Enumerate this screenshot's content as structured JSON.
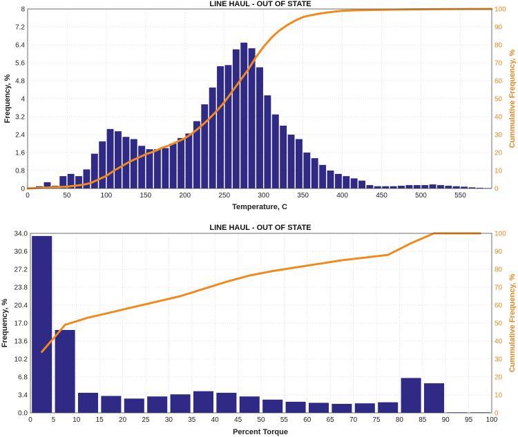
{
  "colors": {
    "bars": "#2E2A86",
    "cumulative": "#F28A1B",
    "right_axis": "#E8871E"
  },
  "chart_data": [
    {
      "type": "bar",
      "title": "LINE HAUL - OUT OF STATE",
      "xlabel": "Temperature, C",
      "ylabel": "Frequency, %",
      "y2label": "Cummulative Frequency, %",
      "xlim": [
        0,
        590
      ],
      "ylim": [
        0,
        8
      ],
      "y2lim": [
        0,
        100
      ],
      "bin_width": 10,
      "xticks": [
        0,
        50,
        100,
        150,
        200,
        250,
        300,
        350,
        400,
        450,
        500,
        550
      ],
      "yticks": [
        "0",
        "0.8",
        "1.6",
        "2.4",
        "3.2",
        "4",
        "4.8",
        "5.6",
        "6.4",
        "7.2",
        "8"
      ],
      "y2ticks": [
        0,
        10,
        20,
        30,
        40,
        50,
        60,
        70,
        80,
        90,
        100
      ],
      "bin_centers": [
        5,
        15,
        25,
        35,
        45,
        55,
        65,
        75,
        85,
        95,
        105,
        115,
        125,
        135,
        145,
        155,
        165,
        175,
        185,
        195,
        205,
        215,
        225,
        235,
        245,
        255,
        265,
        275,
        285,
        295,
        305,
        315,
        325,
        335,
        345,
        355,
        365,
        375,
        385,
        395,
        405,
        415,
        425,
        435,
        445,
        455,
        465,
        475,
        485,
        495,
        505,
        515,
        525,
        535,
        545,
        555,
        565,
        575,
        585
      ],
      "values": [
        0.05,
        0.1,
        0.28,
        0.12,
        0.55,
        0.65,
        0.55,
        0.85,
        1.55,
        2.1,
        2.65,
        2.55,
        2.3,
        2.2,
        1.9,
        1.75,
        1.75,
        1.8,
        2.0,
        2.25,
        2.45,
        3.0,
        3.75,
        4.5,
        5.45,
        5.5,
        6.2,
        6.5,
        6.25,
        5.4,
        4.15,
        3.3,
        2.8,
        2.4,
        2.2,
        1.6,
        1.35,
        1.05,
        0.8,
        0.65,
        0.55,
        0.45,
        0.35,
        0.15,
        0.1,
        0.1,
        0.1,
        0.12,
        0.15,
        0.15,
        0.15,
        0.18,
        0.15,
        0.12,
        0.1,
        0.08,
        0.05,
        0.03,
        0.02
      ],
      "cumulative": {
        "x": [
          0,
          50,
          70,
          80,
          90,
          100,
          110,
          120,
          130,
          140,
          150,
          160,
          170,
          180,
          190,
          200,
          210,
          220,
          230,
          240,
          250,
          260,
          270,
          280,
          290,
          300,
          310,
          320,
          330,
          340,
          350,
          360,
          370,
          380,
          390,
          400,
          420,
          450,
          480,
          510,
          550,
          590
        ],
        "values": [
          0,
          1,
          2,
          3,
          5,
          7,
          10,
          12.5,
          15,
          17,
          19,
          20.5,
          22.5,
          24,
          26,
          28,
          31,
          34.5,
          38.5,
          43,
          48,
          54,
          60,
          66,
          73,
          79,
          84,
          88,
          91,
          93.5,
          95.5,
          96.5,
          97.3,
          98,
          98.5,
          99,
          99.3,
          99.5,
          99.7,
          99.85,
          99.95,
          100
        ]
      }
    },
    {
      "type": "bar",
      "title": "LINE HAUL - OUT OF STATE",
      "xlabel": "Percent Torque",
      "ylabel": "Frequency, %",
      "y2label": "Cummulative Frequency, %",
      "xlim": [
        0,
        100
      ],
      "ylim": [
        0,
        34
      ],
      "y2lim": [
        0,
        100
      ],
      "bin_width": 5,
      "xticks": [
        0,
        5,
        10,
        15,
        20,
        25,
        30,
        35,
        40,
        45,
        50,
        55,
        60,
        65,
        70,
        75,
        80,
        85,
        90,
        95,
        100
      ],
      "yticks": [
        "0.0",
        "3.4",
        "6.8",
        "10.2",
        "13.6",
        "17.0",
        "20.4",
        "23.8",
        "27.2",
        "30.6",
        "34.0"
      ],
      "y2ticks": [
        0,
        10,
        20,
        30,
        40,
        50,
        60,
        70,
        80,
        90,
        100
      ],
      "bin_centers": [
        2.5,
        7.5,
        12.5,
        17.5,
        22.5,
        27.5,
        32.5,
        37.5,
        42.5,
        47.5,
        52.5,
        57.5,
        62.5,
        67.5,
        72.5,
        77.5,
        82.5,
        87.5,
        92.5,
        97.5
      ],
      "values": [
        33.5,
        15.7,
        3.8,
        3.2,
        2.7,
        3.1,
        3.5,
        4.1,
        3.8,
        3.1,
        2.5,
        2.1,
        1.9,
        1.7,
        1.8,
        2.0,
        6.6,
        5.6,
        0.1,
        0.1
      ],
      "cumulative": {
        "x": [
          2.5,
          7.5,
          12.5,
          17.5,
          22.5,
          27.5,
          32.5,
          37.5,
          42.5,
          47.5,
          52.5,
          57.5,
          62.5,
          67.5,
          72.5,
          77.5,
          82.5,
          87.5,
          92.5,
          97.5
        ],
        "values": [
          34,
          49,
          53,
          56,
          59,
          62,
          65,
          69,
          73,
          76.5,
          79,
          81,
          83,
          85,
          86.5,
          88,
          94.5,
          100,
          100,
          100
        ]
      }
    }
  ]
}
